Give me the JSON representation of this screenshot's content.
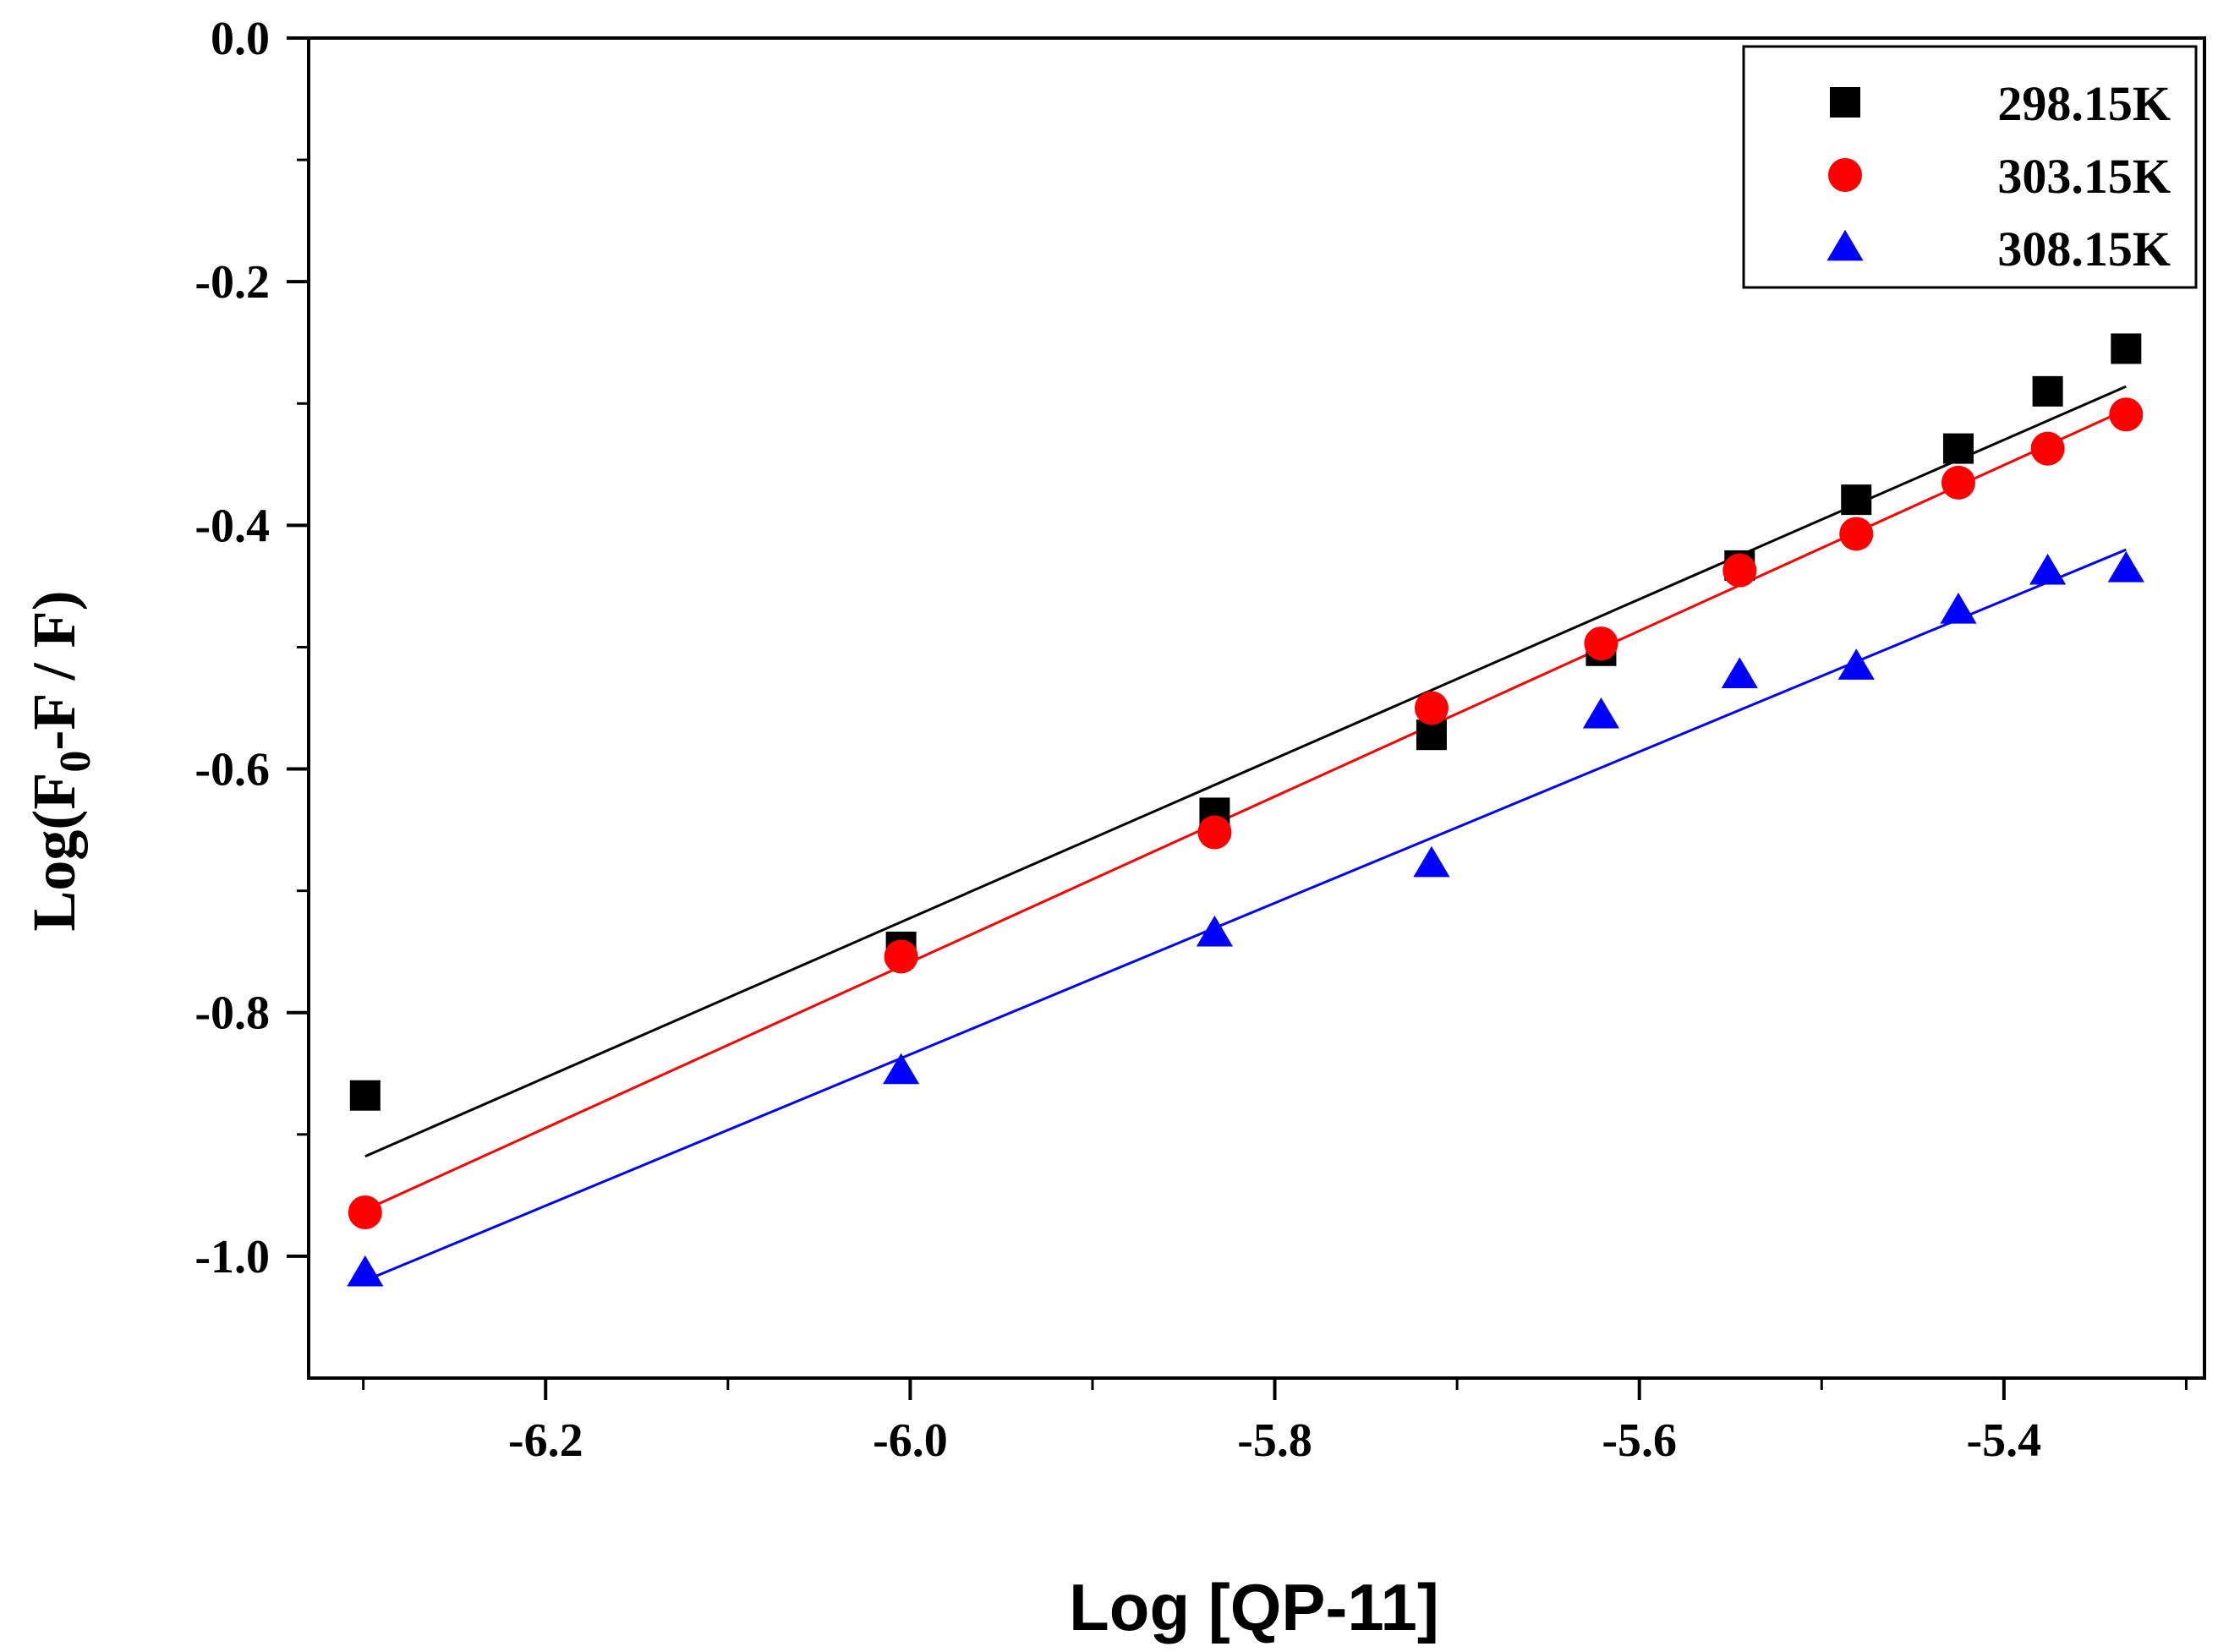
{
  "chart_data": {
    "type": "scatter",
    "title": "",
    "xlabel": "Log [QP-11]",
    "ylabel": {
      "prefix": "Log(F",
      "subscript": "0",
      "suffix": "-F / F)"
    },
    "xlim": [
      -6.33,
      -5.29
    ],
    "ylim": [
      -1.1,
      0.0
    ],
    "xticks": [
      {
        "value": -6.2,
        "label": "-6.2"
      },
      {
        "value": -6.0,
        "label": "-6.0"
      },
      {
        "value": -5.8,
        "label": "-5.8"
      },
      {
        "value": -5.6,
        "label": "-5.6"
      },
      {
        "value": -5.4,
        "label": "-5.4"
      }
    ],
    "yticks": [
      {
        "value": 0.0,
        "label": "0.0"
      },
      {
        "value": -0.2,
        "label": "-0.2"
      },
      {
        "value": -0.4,
        "label": "-0.4"
      },
      {
        "value": -0.6,
        "label": "-0.6"
      },
      {
        "value": -0.8,
        "label": "-0.8"
      },
      {
        "value": -1.0,
        "label": "-1.0"
      }
    ],
    "legend_position": "top-right",
    "series": [
      {
        "name": "298.15K",
        "marker": "square",
        "color": "#000000",
        "x": [
          -6.299,
          -6.005,
          -5.833,
          -5.714,
          -5.621,
          -5.545,
          -5.481,
          -5.425,
          -5.376,
          -5.333
        ],
        "y": [
          -0.868,
          -0.746,
          -0.636,
          -0.572,
          -0.503,
          -0.433,
          -0.379,
          -0.337,
          -0.29,
          -0.255
        ],
        "fit": {
          "x": [
            -6.299,
            -5.333
          ],
          "y": [
            -0.918,
            -0.286
          ]
        }
      },
      {
        "name": "303.15K",
        "marker": "circle",
        "color": "#ff0000",
        "x": [
          -6.299,
          -6.005,
          -5.833,
          -5.714,
          -5.621,
          -5.545,
          -5.481,
          -5.425,
          -5.376,
          -5.333
        ],
        "y": [
          -0.964,
          -0.754,
          -0.652,
          -0.55,
          -0.497,
          -0.437,
          -0.407,
          -0.365,
          -0.337,
          -0.309
        ],
        "fit": {
          "x": [
            -6.299,
            -5.333
          ],
          "y": [
            -0.962,
            -0.305
          ]
        }
      },
      {
        "name": "308.15K",
        "marker": "triangle",
        "color": "#0000ff",
        "x": [
          -6.299,
          -6.005,
          -5.833,
          -5.714,
          -5.621,
          -5.545,
          -5.481,
          -5.425,
          -5.376,
          -5.333
        ],
        "y": [
          -1.014,
          -0.848,
          -0.735,
          -0.678,
          -0.556,
          -0.523,
          -0.516,
          -0.47,
          -0.438,
          -0.436
        ],
        "fit": {
          "x": [
            -6.299,
            -5.333
          ],
          "y": [
            -1.02,
            -0.42
          ]
        }
      }
    ]
  }
}
